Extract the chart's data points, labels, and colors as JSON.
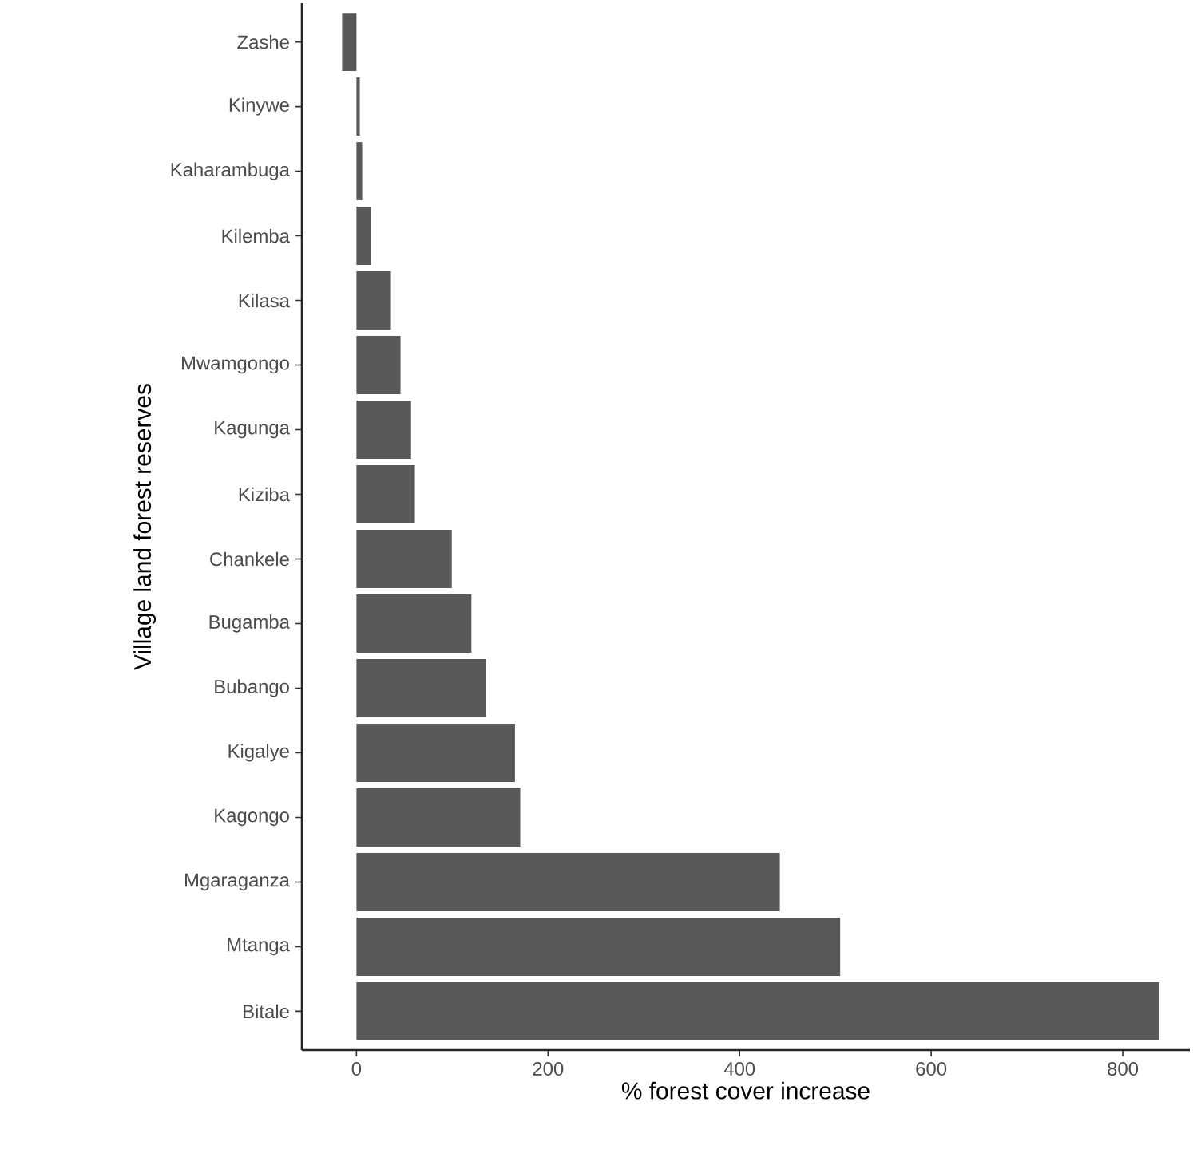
{
  "chart_data": {
    "type": "bar",
    "orientation": "horizontal",
    "xlabel": "% forest cover increase",
    "ylabel": "Village land forest reserves",
    "categories": [
      "Zashe",
      "Kinywe",
      "Kaharambuga",
      "Kilemba",
      "Kilasa",
      "Mwamgongo",
      "Kagunga",
      "Kiziba",
      "Chankele",
      "Bugamba",
      "Bubango",
      "Kigalye",
      "Kagongo",
      "Mgaraganza",
      "Mtanga",
      "Bitale"
    ],
    "values": [
      -15,
      3.5,
      6,
      15,
      36,
      46,
      57,
      61,
      99.5,
      120,
      135,
      165.5,
      171,
      442,
      505,
      838
    ],
    "color": "#595959",
    "xlim": [
      -57,
      870
    ],
    "xticks": [
      0,
      200,
      400,
      600,
      800
    ],
    "grid": false
  }
}
